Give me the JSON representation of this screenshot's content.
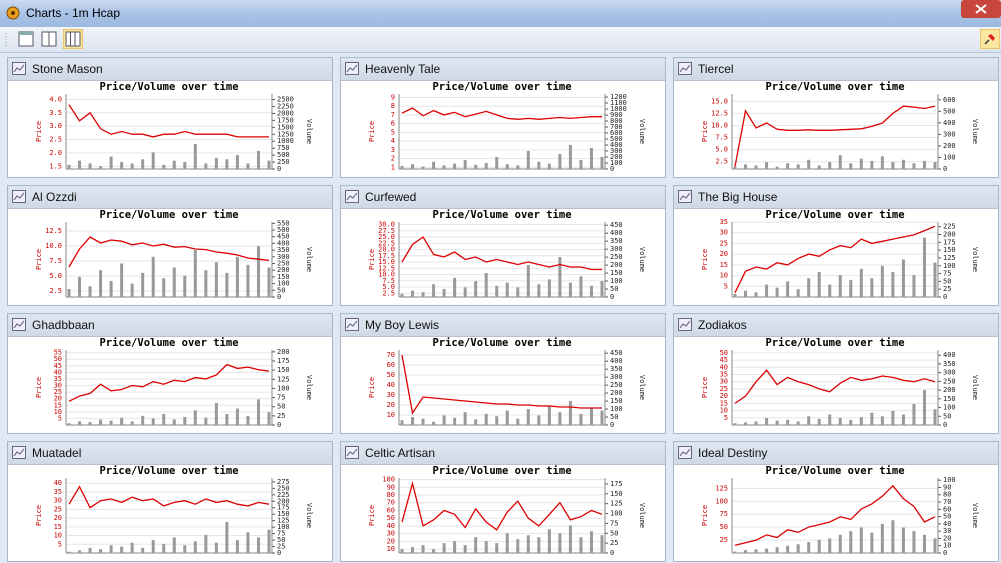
{
  "window_title": "Charts - 1m Hcap",
  "chart_data": [
    {
      "type": "line",
      "panel": "Stone Mason",
      "title": "Price/Volume over time",
      "ylim": [
        1.4,
        4.2
      ],
      "yticks": [
        1.5,
        {
          "value": 2,
          "label": "2.0"
        },
        2.5,
        {
          "value": 3,
          "label": "3.0"
        },
        3.5,
        {
          "value": 4,
          "label": "4.0"
        }
      ],
      "y2lim": [
        0,
        2700
      ],
      "y2ticks": [
        0,
        250,
        500,
        750,
        1000,
        1250,
        1500,
        1750,
        2000,
        2250,
        2500
      ],
      "grid": true,
      "series": [
        {
          "name": "Price",
          "color": "#dd0000",
          "values": [
            3.8,
            3.2,
            3.5,
            2.9,
            2.7,
            2.8,
            2.7,
            2.7,
            2.6,
            2.7,
            2.7,
            2.8,
            2.7,
            2.7,
            2.7,
            2.7,
            2.6,
            2.6,
            2.6,
            2.6
          ]
        },
        {
          "name": "Volume",
          "axis": "y2",
          "color": "#999999",
          "values": [
            150,
            300,
            200,
            100,
            450,
            250,
            200,
            350,
            600,
            150,
            300,
            250,
            900,
            200,
            400,
            350,
            500,
            200,
            650,
            300
          ]
        }
      ]
    },
    {
      "type": "line",
      "panel": "Heavenly Tale",
      "title": "Price/Volume over time",
      "ylim": [
        0.8,
        9.4
      ],
      "yticks": [
        1,
        2,
        3,
        4,
        5,
        6,
        7,
        8,
        9
      ],
      "y2lim": [
        0,
        1250
      ],
      "y2ticks": [
        0,
        100,
        200,
        300,
        400,
        500,
        600,
        700,
        800,
        900,
        1000,
        1100,
        1200
      ],
      "grid": true,
      "series": [
        {
          "name": "Price",
          "color": "#dd0000",
          "values": [
            7.2,
            7.8,
            6.9,
            7.5,
            7.0,
            7.3,
            6.8,
            7.1,
            7.4,
            7.0,
            6.6,
            6.5,
            6.6,
            6.5,
            6.6,
            6.7,
            6.6,
            6.7,
            6.8,
            6.8
          ]
        },
        {
          "name": "Volume",
          "axis": "y2",
          "color": "#999999",
          "values": [
            50,
            80,
            40,
            120,
            60,
            90,
            150,
            70,
            100,
            200,
            80,
            60,
            300,
            120,
            90,
            250,
            400,
            150,
            350,
            200
          ]
        }
      ]
    },
    {
      "type": "line",
      "panel": "Tiercel",
      "title": "Price/Volume over time",
      "ylim": [
        1,
        16.5
      ],
      "yticks": [
        2.5,
        {
          "value": 5,
          "label": "5.0"
        },
        7.5,
        {
          "value": 10,
          "label": "10.0"
        },
        12.5,
        {
          "value": 15,
          "label": "15.0"
        }
      ],
      "y2lim": [
        0,
        650
      ],
      "y2ticks": [
        0,
        100,
        200,
        300,
        400,
        500,
        600
      ],
      "grid": true,
      "series": [
        {
          "name": "Price",
          "color": "#dd0000",
          "values": [
            1.5,
            13.0,
            9.5,
            10.5,
            9.2,
            9.0,
            9.0,
            9.1,
            9.0,
            9.0,
            9.1,
            9.2,
            9.3,
            9.8,
            10.5,
            12.5,
            14.0,
            13.8,
            13.5,
            14.0
          ]
        },
        {
          "name": "Volume",
          "axis": "y2",
          "color": "#999999",
          "values": [
            20,
            40,
            30,
            60,
            20,
            50,
            40,
            80,
            30,
            60,
            120,
            50,
            90,
            70,
            110,
            60,
            80,
            50,
            70,
            60
          ]
        }
      ]
    },
    {
      "type": "line",
      "panel": "Al Ozzdi",
      "title": "Price/Volume over time",
      "ylim": [
        1.5,
        14
      ],
      "yticks": [
        2.5,
        {
          "value": 5,
          "label": "5.0"
        },
        7.5,
        {
          "value": 10,
          "label": "10.0"
        },
        12.5
      ],
      "y2lim": [
        0,
        560
      ],
      "y2ticks": [
        0,
        50,
        100,
        150,
        200,
        250,
        300,
        350,
        400,
        450,
        500,
        550
      ],
      "grid": true,
      "series": [
        {
          "name": "Price",
          "color": "#dd0000",
          "values": [
            6.5,
            9.5,
            11.5,
            10.5,
            11.0,
            10.8,
            10.2,
            10.5,
            10.0,
            10.3,
            9.8,
            9.9,
            9.5,
            9.4,
            9.0,
            8.8,
            8.5,
            8.0,
            7.8,
            7.6
          ]
        },
        {
          "name": "Volume",
          "axis": "y2",
          "color": "#999999",
          "values": [
            60,
            150,
            80,
            200,
            120,
            250,
            100,
            180,
            300,
            140,
            220,
            160,
            350,
            200,
            260,
            180,
            300,
            240,
            380,
            220
          ]
        }
      ]
    },
    {
      "type": "line",
      "panel": "Curfewed",
      "title": "Price/Volume over time",
      "ylim": [
        1,
        31
      ],
      "yticks": [
        2.5,
        {
          "value": 5,
          "label": "5.0"
        },
        7.5,
        {
          "value": 10,
          "label": "10.0"
        },
        12.5,
        {
          "value": 15,
          "label": "15.0"
        },
        17.5,
        {
          "value": 20,
          "label": "20.0"
        },
        22.5,
        {
          "value": 25,
          "label": "25.0"
        },
        27.5,
        {
          "value": 30,
          "label": "30.0"
        }
      ],
      "y2lim": [
        0,
        470
      ],
      "y2ticks": [
        0,
        50,
        100,
        150,
        200,
        250,
        300,
        350,
        400,
        450
      ],
      "grid": true,
      "series": [
        {
          "name": "Price",
          "color": "#dd0000",
          "values": [
            15,
            22,
            25,
            18,
            17,
            19,
            16,
            17,
            15,
            16,
            15,
            14,
            15,
            14,
            13,
            14,
            13,
            13,
            12,
            12
          ]
        },
        {
          "name": "Volume",
          "axis": "y2",
          "color": "#999999",
          "values": [
            20,
            40,
            30,
            80,
            50,
            120,
            60,
            100,
            150,
            70,
            90,
            60,
            200,
            80,
            110,
            250,
            90,
            130,
            70,
            100
          ]
        }
      ]
    },
    {
      "type": "line",
      "panel": "The Big House",
      "title": "Price/Volume over time",
      "ylim": [
        0,
        35
      ],
      "yticks": [
        5,
        10,
        15,
        20,
        25,
        30,
        35
      ],
      "y2lim": [
        0,
        240
      ],
      "y2ticks": [
        0,
        25,
        50,
        75,
        100,
        125,
        150,
        175,
        200,
        225
      ],
      "grid": true,
      "series": [
        {
          "name": "Price",
          "color": "#dd0000",
          "values": [
            2,
            12,
            14,
            13,
            16,
            15,
            18,
            20,
            19,
            22,
            24,
            23,
            27,
            25,
            26,
            27,
            28,
            29,
            31,
            33
          ]
        },
        {
          "name": "Volume",
          "axis": "y2",
          "color": "#999999",
          "values": [
            10,
            20,
            15,
            40,
            30,
            50,
            25,
            60,
            80,
            40,
            70,
            55,
            90,
            60,
            100,
            80,
            120,
            70,
            190,
            110
          ]
        }
      ]
    },
    {
      "type": "line",
      "panel": "Ghadbbaan",
      "title": "Price/Volume over time",
      "ylim": [
        0,
        57
      ],
      "yticks": [
        5,
        10,
        15,
        20,
        25,
        30,
        35,
        40,
        45,
        50,
        55
      ],
      "y2lim": [
        0,
        205
      ],
      "y2ticks": [
        0,
        25,
        50,
        75,
        100,
        125,
        150,
        175,
        200
      ],
      "grid": true,
      "series": [
        {
          "name": "Price",
          "color": "#dd0000",
          "values": [
            18,
            22,
            24,
            31,
            26,
            27,
            30,
            29,
            33,
            31,
            34,
            33,
            36,
            35,
            38,
            46,
            43,
            44,
            42,
            41
          ]
        },
        {
          "name": "Volume",
          "axis": "y2",
          "color": "#999999",
          "values": [
            5,
            10,
            8,
            15,
            12,
            20,
            10,
            25,
            18,
            30,
            15,
            22,
            40,
            20,
            60,
            30,
            45,
            25,
            70,
            35
          ]
        }
      ]
    },
    {
      "type": "line",
      "panel": "My Boy Lewis",
      "title": "Price/Volume over time",
      "ylim": [
        0,
        75
      ],
      "yticks": [
        10,
        20,
        30,
        40,
        50,
        60,
        70
      ],
      "y2lim": [
        0,
        470
      ],
      "y2ticks": [
        0,
        50,
        100,
        150,
        200,
        250,
        300,
        350,
        400,
        450
      ],
      "grid": true,
      "series": [
        {
          "name": "Price",
          "color": "#dd0000",
          "values": [
            70,
            12,
            28,
            27,
            26,
            25,
            24,
            23,
            22,
            21,
            21,
            20,
            20,
            19,
            19,
            18,
            18,
            17,
            17,
            17
          ]
        },
        {
          "name": "Volume",
          "axis": "y2",
          "color": "#999999",
          "values": [
            30,
            50,
            40,
            20,
            60,
            45,
            80,
            35,
            70,
            55,
            90,
            40,
            100,
            60,
            120,
            80,
            150,
            70,
            110,
            90
          ]
        }
      ]
    },
    {
      "type": "line",
      "panel": "Zodiakos",
      "title": "Price/Volume over time",
      "ylim": [
        0,
        52
      ],
      "yticks": [
        5,
        10,
        15,
        20,
        25,
        30,
        35,
        40,
        45,
        50
      ],
      "y2lim": [
        0,
        430
      ],
      "y2ticks": [
        0,
        50,
        100,
        150,
        200,
        250,
        300,
        350,
        400
      ],
      "grid": true,
      "series": [
        {
          "name": "Price",
          "color": "#dd0000",
          "values": [
            15,
            20,
            30,
            38,
            28,
            33,
            30,
            28,
            25,
            23,
            29,
            33,
            31,
            32,
            34,
            33,
            31,
            30,
            32,
            30
          ]
        },
        {
          "name": "Volume",
          "axis": "y2",
          "color": "#999999",
          "values": [
            10,
            15,
            20,
            40,
            25,
            30,
            20,
            50,
            35,
            60,
            40,
            30,
            45,
            70,
            50,
            80,
            60,
            120,
            200,
            90
          ]
        }
      ]
    },
    {
      "type": "line",
      "panel": "Muatadel",
      "title": "Price/Volume over time",
      "ylim": [
        0,
        43
      ],
      "yticks": [
        5,
        10,
        15,
        20,
        25,
        30,
        35,
        40
      ],
      "y2lim": [
        0,
        290
      ],
      "y2ticks": [
        0,
        25,
        50,
        75,
        100,
        125,
        150,
        175,
        200,
        225,
        250,
        275
      ],
      "grid": true,
      "series": [
        {
          "name": "Price",
          "color": "#dd0000",
          "values": [
            28,
            38,
            26,
            30,
            31,
            29,
            32,
            30,
            31,
            27,
            29,
            30,
            28,
            31,
            29,
            30,
            28,
            27,
            29,
            28
          ]
        },
        {
          "name": "Volume",
          "axis": "y2",
          "color": "#999999",
          "values": [
            5,
            10,
            20,
            15,
            30,
            25,
            40,
            20,
            50,
            35,
            60,
            30,
            45,
            70,
            40,
            120,
            50,
            80,
            60,
            90
          ]
        }
      ]
    },
    {
      "type": "line",
      "panel": "Celtic Artisan",
      "title": "Price/Volume over time",
      "ylim": [
        5,
        102
      ],
      "yticks": [
        10,
        20,
        30,
        40,
        50,
        60,
        70,
        80,
        90,
        100
      ],
      "y2lim": [
        0,
        190
      ],
      "y2ticks": [
        0,
        25,
        50,
        75,
        100,
        125,
        150,
        175
      ],
      "grid": true,
      "series": [
        {
          "name": "Price",
          "color": "#dd0000",
          "values": [
            45,
            95,
            40,
            48,
            60,
            55,
            38,
            62,
            45,
            35,
            58,
            72,
            50,
            40,
            55,
            70,
            48,
            52,
            60,
            55
          ]
        },
        {
          "name": "Volume",
          "axis": "y2",
          "color": "#999999",
          "values": [
            10,
            15,
            20,
            10,
            25,
            30,
            20,
            40,
            30,
            25,
            50,
            35,
            45,
            40,
            60,
            50,
            70,
            40,
            55,
            45
          ]
        }
      ]
    },
    {
      "type": "line",
      "panel": "Ideal Destiny",
      "title": "Price/Volume over time",
      "ylim": [
        0,
        145
      ],
      "yticks": [
        25,
        50,
        75,
        100,
        125
      ],
      "y2lim": [
        0,
        103
      ],
      "y2ticks": [
        0,
        10,
        20,
        30,
        40,
        50,
        60,
        70,
        80,
        90,
        100
      ],
      "grid": true,
      "series": [
        {
          "name": "Price",
          "color": "#dd0000",
          "values": [
            15,
            20,
            25,
            35,
            30,
            45,
            40,
            50,
            55,
            60,
            70,
            65,
            85,
            95,
            110,
            130,
            105,
            90,
            60,
            70
          ]
        },
        {
          "name": "Volume",
          "axis": "y2",
          "color": "#999999",
          "values": [
            2,
            4,
            5,
            6,
            8,
            10,
            12,
            15,
            18,
            20,
            25,
            30,
            35,
            28,
            40,
            45,
            35,
            30,
            25,
            20
          ]
        }
      ]
    }
  ]
}
